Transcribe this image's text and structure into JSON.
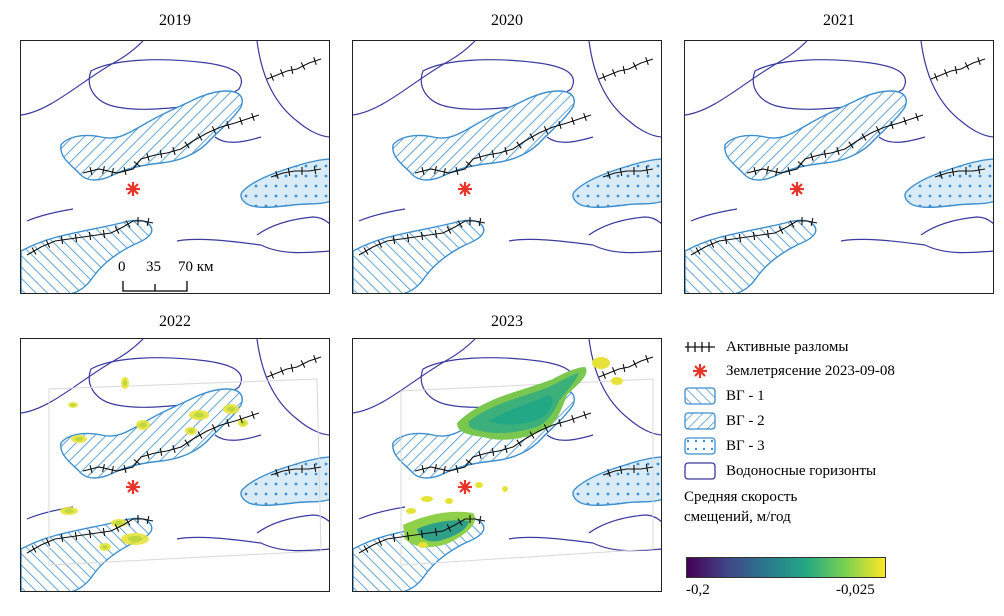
{
  "panels": [
    {
      "title": "2019",
      "deformation": "none"
    },
    {
      "title": "2020",
      "deformation": "none"
    },
    {
      "title": "2021",
      "deformation": "none"
    },
    {
      "title": "2022",
      "deformation": "low"
    },
    {
      "title": "2023",
      "deformation": "high"
    }
  ],
  "scale": {
    "ticks": [
      "0",
      "35",
      "70 км"
    ]
  },
  "legend": {
    "faults": "Активные разломы",
    "earthquake": "Землетрясение 2023-09-08",
    "vg1": "ВГ - 1",
    "vg2": "ВГ - 2",
    "vg3": "ВГ - 3",
    "aquifers": "Водоносные горизонты"
  },
  "colorbar": {
    "title_line1": "Средняя скорость",
    "title_line2": "смещений, м/год",
    "min_label": "-0,2",
    "max_label": "-0,025",
    "colormap": "viridis"
  },
  "colors": {
    "aquifer_outline": "#3a3aa0",
    "hatch_blue": "#3d8fcf",
    "fill_blue": "#d8ebf7",
    "fault_line": "#111111",
    "earthquake": "#e8352b"
  }
}
